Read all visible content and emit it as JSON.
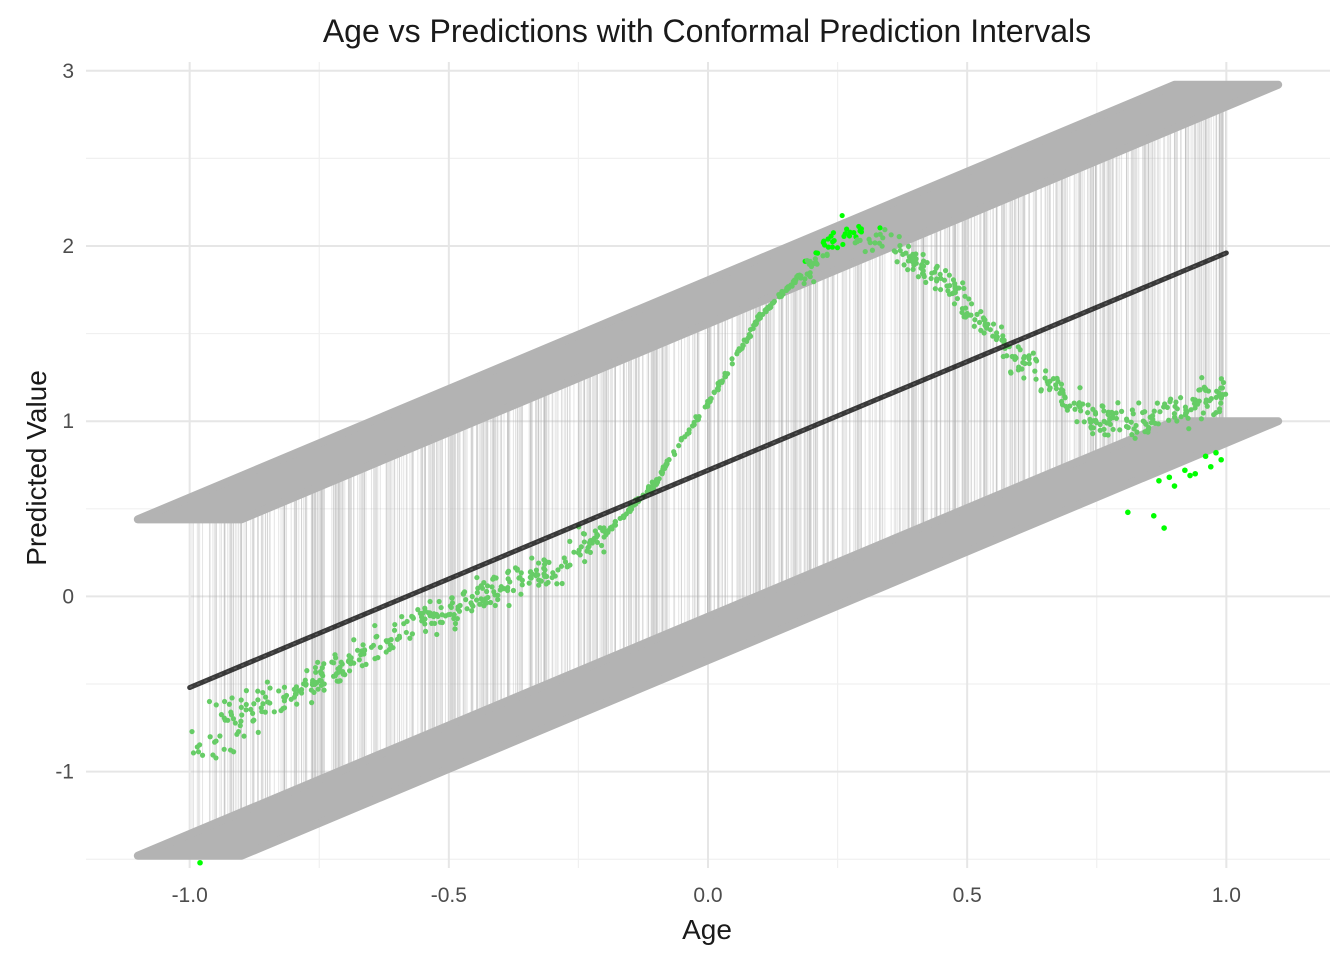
{
  "chart_data": {
    "type": "scatter",
    "title": "Age vs Predictions with Conformal Prediction Intervals",
    "xlabel": "Age",
    "ylabel": "Predicted Value",
    "xlim": [
      -1.2,
      1.2
    ],
    "ylim": [
      -1.55,
      3.05
    ],
    "x_ticks": [
      -1.0,
      -0.5,
      0.0,
      0.5,
      1.0
    ],
    "x_tick_labels": [
      "-1.0",
      "-0.5",
      "0.0",
      "0.5",
      "1.0"
    ],
    "y_ticks": [
      -1,
      0,
      1,
      2,
      3
    ],
    "y_tick_labels": [
      "-1",
      "0",
      "1",
      "2",
      "3"
    ],
    "grid": true,
    "regression_line": {
      "intercept": 0.72,
      "slope": 1.24
    },
    "interval": {
      "lower_offset": -0.96,
      "upper_offset": 0.96,
      "half_width": 0.1
    },
    "colors": {
      "points_inside": "#66cc66",
      "points_outside": "#00ff00",
      "interval": "#b3b3b3",
      "line": "#000000"
    },
    "series": [
      {
        "values_curve": [
          [
            -1.0,
            -0.85
          ],
          [
            -0.9,
            -0.7
          ],
          [
            -0.8,
            -0.55
          ],
          [
            -0.7,
            -0.4
          ],
          [
            -0.6,
            -0.2
          ],
          [
            -0.5,
            -0.08
          ],
          [
            -0.4,
            0.05
          ],
          [
            -0.3,
            0.15
          ],
          [
            -0.2,
            0.35
          ],
          [
            -0.15,
            0.5
          ],
          [
            -0.1,
            0.65
          ],
          [
            -0.05,
            0.9
          ],
          [
            0.0,
            1.1
          ],
          [
            0.05,
            1.35
          ],
          [
            0.1,
            1.6
          ],
          [
            0.15,
            1.75
          ],
          [
            0.2,
            1.9
          ],
          [
            0.25,
            2.05
          ],
          [
            0.3,
            2.05
          ],
          [
            0.35,
            2.0
          ],
          [
            0.4,
            1.9
          ],
          [
            0.45,
            1.8
          ],
          [
            0.5,
            1.65
          ],
          [
            0.55,
            1.5
          ],
          [
            0.6,
            1.35
          ],
          [
            0.65,
            1.25
          ],
          [
            0.7,
            1.1
          ],
          [
            0.75,
            1.0
          ],
          [
            0.8,
            1.0
          ],
          [
            0.85,
            1.0
          ],
          [
            0.9,
            1.05
          ],
          [
            0.95,
            1.1
          ],
          [
            1.0,
            1.15
          ]
        ]
      }
    ],
    "outlier_points": [
      [
        -0.98,
        -1.52
      ],
      [
        0.81,
        0.48
      ],
      [
        0.86,
        0.46
      ],
      [
        0.88,
        0.39
      ],
      [
        0.87,
        0.66
      ],
      [
        0.89,
        0.68
      ],
      [
        0.9,
        0.63
      ],
      [
        0.92,
        0.72
      ],
      [
        0.94,
        0.7
      ],
      [
        0.96,
        0.8
      ],
      [
        0.99,
        0.78
      ],
      [
        0.98,
        0.82
      ],
      [
        0.93,
        0.69
      ],
      [
        0.97,
        0.74
      ]
    ]
  }
}
